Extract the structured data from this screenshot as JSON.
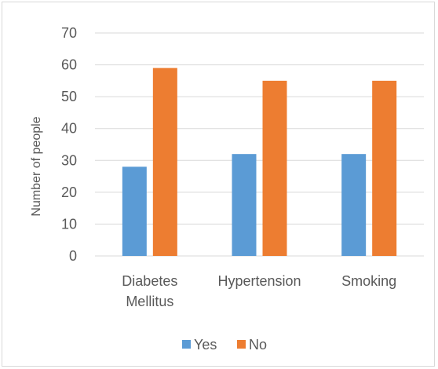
{
  "chart_data": {
    "type": "bar",
    "categories": [
      [
        "Diabetes",
        "Mellitus"
      ],
      [
        "Hypertension"
      ],
      [
        "Smoking"
      ]
    ],
    "series": [
      {
        "name": "Yes",
        "values": [
          28,
          32,
          32
        ],
        "color": "#5B9BD5"
      },
      {
        "name": "No",
        "values": [
          59,
          55,
          55
        ],
        "color": "#ED7D31"
      }
    ],
    "ylabel": "Number of people",
    "ylim": [
      0,
      70
    ],
    "yticks": [
      0,
      10,
      20,
      30,
      40,
      50,
      60,
      70
    ],
    "grid": true,
    "legend": "bottom",
    "colors": {
      "gridline": "#d9d9d9",
      "text": "#595959",
      "border": "#d9d9d9"
    }
  }
}
